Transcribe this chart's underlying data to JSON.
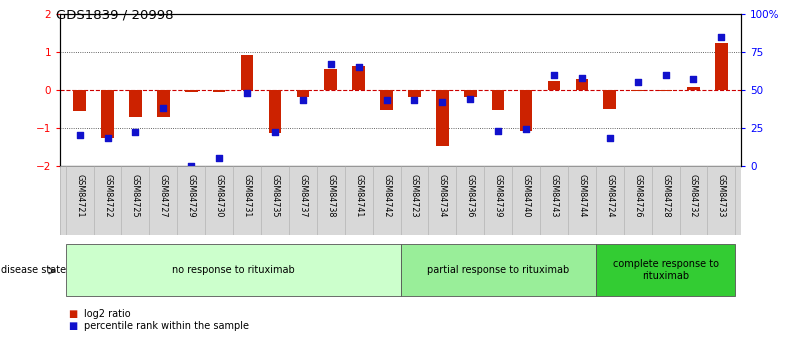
{
  "title": "GDS1839 / 20998",
  "samples": [
    "GSM84721",
    "GSM84722",
    "GSM84725",
    "GSM84727",
    "GSM84729",
    "GSM84730",
    "GSM84731",
    "GSM84735",
    "GSM84737",
    "GSM84738",
    "GSM84741",
    "GSM84742",
    "GSM84723",
    "GSM84734",
    "GSM84736",
    "GSM84739",
    "GSM84740",
    "GSM84743",
    "GSM84744",
    "GSM84724",
    "GSM84726",
    "GSM84728",
    "GSM84732",
    "GSM84733"
  ],
  "log2_ratio": [
    -0.55,
    -1.28,
    -0.72,
    -0.72,
    -0.05,
    -0.07,
    0.92,
    -1.13,
    -0.18,
    0.55,
    0.62,
    -0.53,
    -0.18,
    -1.48,
    -0.18,
    -0.53,
    -1.08,
    0.22,
    0.28,
    -0.52,
    -0.04,
    -0.04,
    0.06,
    1.22
  ],
  "percentile": [
    20,
    18,
    22,
    38,
    0,
    5,
    48,
    22,
    43,
    67,
    65,
    43,
    43,
    42,
    44,
    23,
    24,
    60,
    58,
    18,
    55,
    60,
    57,
    85
  ],
  "groups": [
    {
      "label": "no response to rituximab",
      "start": 0,
      "end": 12,
      "color": "#ccffcc"
    },
    {
      "label": "partial response to rituximab",
      "start": 12,
      "end": 19,
      "color": "#99ee99"
    },
    {
      "label": "complete response to\nrituximab",
      "start": 19,
      "end": 24,
      "color": "#33cc33"
    }
  ],
  "bar_color_red": "#cc2200",
  "bar_color_blue": "#1111cc",
  "ylim": [
    -2,
    2
  ],
  "y2lim": [
    0,
    100
  ],
  "yticks_left": [
    -2,
    -1,
    0,
    1,
    2
  ],
  "yticks_right": [
    0,
    25,
    50,
    75,
    100
  ],
  "y2ticklabels": [
    "0",
    "25",
    "50",
    "75",
    "100%"
  ],
  "hline_color_red": "#cc0000",
  "dotted_line_color": "#333333",
  "legend_red": "log2 ratio",
  "legend_blue": "percentile rank within the sample",
  "disease_state_label": "disease state"
}
